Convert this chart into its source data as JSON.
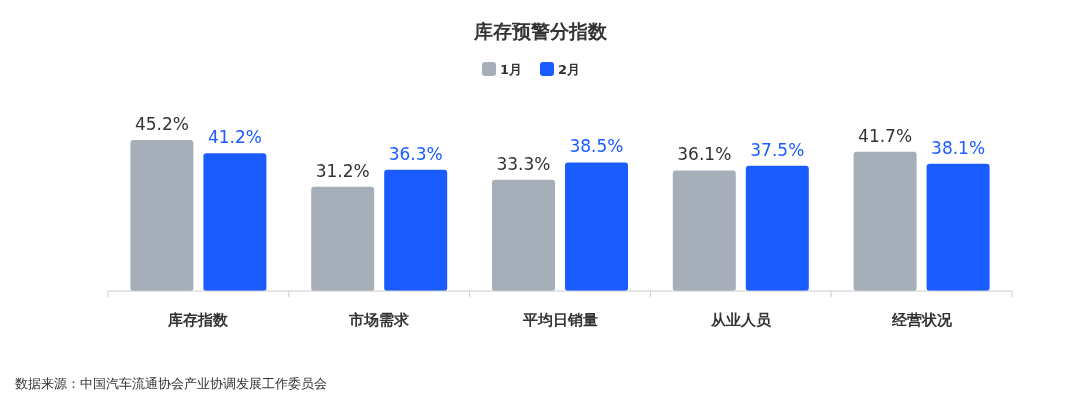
{
  "chart_data": {
    "type": "bar",
    "title": "库存预警分指数",
    "categories": [
      "库存指数",
      "市场需求",
      "平均日销量",
      "从业人员",
      "经营状况"
    ],
    "series": [
      {
        "name": "1月",
        "color": "#a6aeb9",
        "values": [
          45.2,
          31.2,
          33.3,
          36.1,
          41.7
        ],
        "value_labels": [
          "45.2%",
          "31.2%",
          "33.3%",
          "36.1%",
          "41.7%"
        ]
      },
      {
        "name": "2月",
        "color": "#1a5cff",
        "values": [
          41.2,
          36.3,
          38.5,
          37.5,
          38.1
        ],
        "value_labels": [
          "41.2%",
          "36.3%",
          "38.5%",
          "37.5%",
          "38.1%"
        ]
      }
    ],
    "legend": "top",
    "annotations": [
      "数据来源：中国汽车流通协会产业协调发展工作委员会"
    ]
  }
}
